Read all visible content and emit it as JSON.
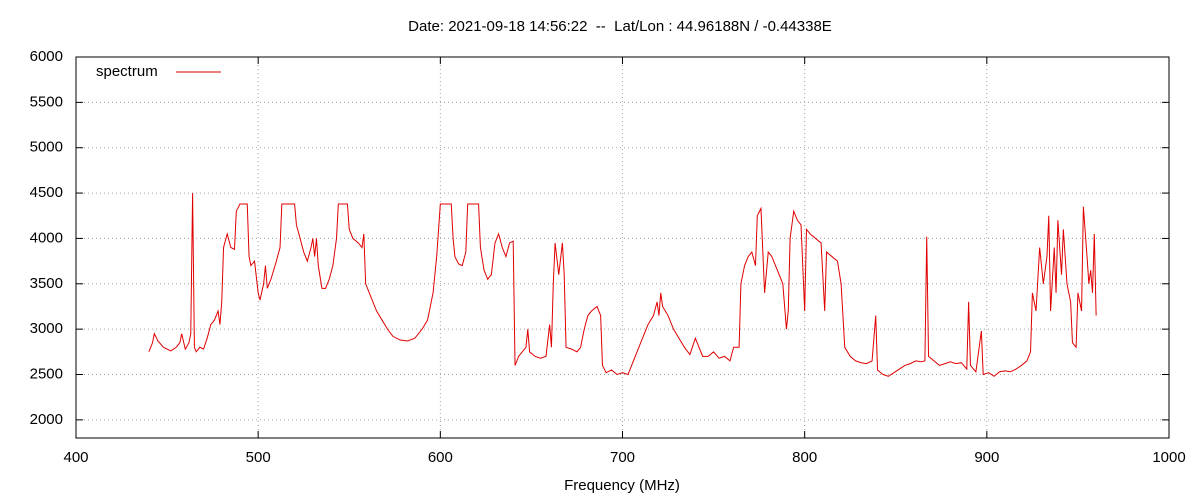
{
  "chart_data": {
    "type": "line",
    "title": "Date: 2021-09-18 14:56:22  --  Lat/Lon : 44.96188N / -0.44338E",
    "x_label": "Frequency (MHz)",
    "xlim": [
      400,
      1000
    ],
    "xticks": [
      400,
      500,
      600,
      700,
      800,
      900,
      1000
    ],
    "ylim": [
      1800,
      6000
    ],
    "yticks": [
      2000,
      2500,
      3000,
      3500,
      4000,
      4500,
      5000,
      5500,
      6000
    ],
    "grid": true,
    "legend": "top-left",
    "x": [
      440,
      442,
      443,
      445,
      448,
      450,
      452,
      455,
      457,
      458,
      460,
      462,
      463,
      464,
      465,
      466,
      468,
      470,
      472,
      474,
      476,
      478,
      479,
      480,
      481,
      483,
      485,
      487,
      488,
      490,
      492,
      494,
      495,
      496,
      498,
      500,
      501,
      503,
      504,
      505,
      507,
      510,
      512,
      513,
      515,
      518,
      520,
      521,
      523,
      525,
      527,
      529,
      530,
      531,
      532,
      533,
      535,
      537,
      539,
      541,
      543,
      544,
      546,
      549,
      550,
      552,
      555,
      557,
      558,
      559,
      562,
      565,
      568,
      571,
      574,
      578,
      582,
      586,
      590,
      593,
      596,
      598,
      600,
      603,
      606,
      607,
      608,
      610,
      612,
      614,
      615,
      618,
      621,
      622,
      624,
      626,
      628,
      630,
      632,
      634,
      636,
      638,
      640,
      641,
      643,
      645,
      647,
      648,
      649,
      652,
      655,
      658,
      660,
      661,
      662,
      663,
      665,
      667,
      668,
      669,
      672,
      675,
      677,
      679,
      681,
      683,
      686,
      688,
      689,
      691,
      694,
      697,
      700,
      703,
      705,
      708,
      711,
      714,
      717,
      719,
      720,
      721,
      722,
      725,
      728,
      731,
      734,
      737,
      740,
      742,
      744,
      747,
      750,
      753,
      756,
      759,
      761,
      764,
      765,
      767,
      769,
      771,
      773,
      774,
      776,
      778,
      780,
      782,
      784,
      786,
      788,
      790,
      791,
      792,
      794,
      796,
      798,
      800,
      801,
      803,
      806,
      809,
      811,
      812,
      815,
      818,
      820,
      822,
      825,
      828,
      831,
      834,
      837,
      839,
      840,
      843,
      846,
      849,
      852,
      855,
      858,
      861,
      864,
      866,
      867,
      868,
      871,
      874,
      877,
      880,
      883,
      886,
      889,
      890,
      891,
      894,
      897,
      898,
      901,
      904,
      907,
      910,
      913,
      916,
      919,
      922,
      924,
      925,
      927,
      929,
      931,
      933,
      934,
      935,
      937,
      938,
      939,
      941,
      942,
      944,
      946,
      947,
      949,
      950,
      952,
      953,
      955,
      956,
      957,
      958,
      959,
      960
    ],
    "series": [
      {
        "name": "spectrum",
        "color": "#e00000",
        "values": [
          2750,
          2850,
          2950,
          2870,
          2800,
          2780,
          2760,
          2800,
          2850,
          2950,
          2780,
          2850,
          2950,
          4500,
          2800,
          2750,
          2800,
          2780,
          2900,
          3050,
          3100,
          3200,
          3050,
          3300,
          3900,
          4050,
          3900,
          3880,
          4300,
          4380,
          4380,
          4380,
          3800,
          3700,
          3750,
          3400,
          3320,
          3500,
          3700,
          3450,
          3550,
          3750,
          3900,
          4380,
          4380,
          4380,
          4380,
          4150,
          4000,
          3850,
          3750,
          3900,
          4000,
          3800,
          4000,
          3700,
          3450,
          3450,
          3550,
          3700,
          4000,
          4380,
          4380,
          4380,
          4100,
          4000,
          3950,
          3900,
          4050,
          3500,
          3350,
          3200,
          3100,
          3000,
          2920,
          2880,
          2870,
          2900,
          3000,
          3100,
          3400,
          3800,
          4380,
          4380,
          4380,
          4000,
          3800,
          3720,
          3700,
          3850,
          4380,
          4380,
          4380,
          3900,
          3650,
          3550,
          3600,
          3950,
          4050,
          3900,
          3800,
          3950,
          3970,
          2600,
          2700,
          2750,
          2800,
          3000,
          2750,
          2700,
          2680,
          2700,
          3050,
          2800,
          3500,
          3950,
          3600,
          3950,
          3600,
          2800,
          2780,
          2750,
          2800,
          3000,
          3150,
          3200,
          3250,
          3150,
          2600,
          2520,
          2550,
          2500,
          2520,
          2500,
          2600,
          2750,
          2900,
          3050,
          3150,
          3300,
          3150,
          3400,
          3250,
          3150,
          3000,
          2900,
          2800,
          2720,
          2900,
          2800,
          2700,
          2700,
          2750,
          2680,
          2700,
          2650,
          2800,
          2800,
          3500,
          3700,
          3800,
          3850,
          3700,
          4250,
          4330,
          3400,
          3850,
          3800,
          3700,
          3600,
          3500,
          3000,
          3200,
          4000,
          4300,
          4200,
          4150,
          3200,
          4100,
          4050,
          4000,
          3950,
          3200,
          3850,
          3800,
          3750,
          3500,
          2800,
          2700,
          2650,
          2630,
          2620,
          2650,
          3150,
          2550,
          2500,
          2480,
          2520,
          2560,
          2600,
          2620,
          2650,
          2640,
          2650,
          4020,
          2700,
          2650,
          2600,
          2620,
          2640,
          2620,
          2630,
          2560,
          3300,
          2600,
          2530,
          2980,
          2500,
          2520,
          2480,
          2530,
          2540,
          2530,
          2560,
          2600,
          2650,
          2750,
          3400,
          3200,
          3900,
          3500,
          3800,
          4250,
          3200,
          3900,
          3400,
          4200,
          3600,
          4100,
          3500,
          3300,
          2850,
          2800,
          3400,
          3200,
          4350,
          3800,
          3500,
          3650,
          3400,
          4050,
          3150
        ]
      }
    ]
  }
}
